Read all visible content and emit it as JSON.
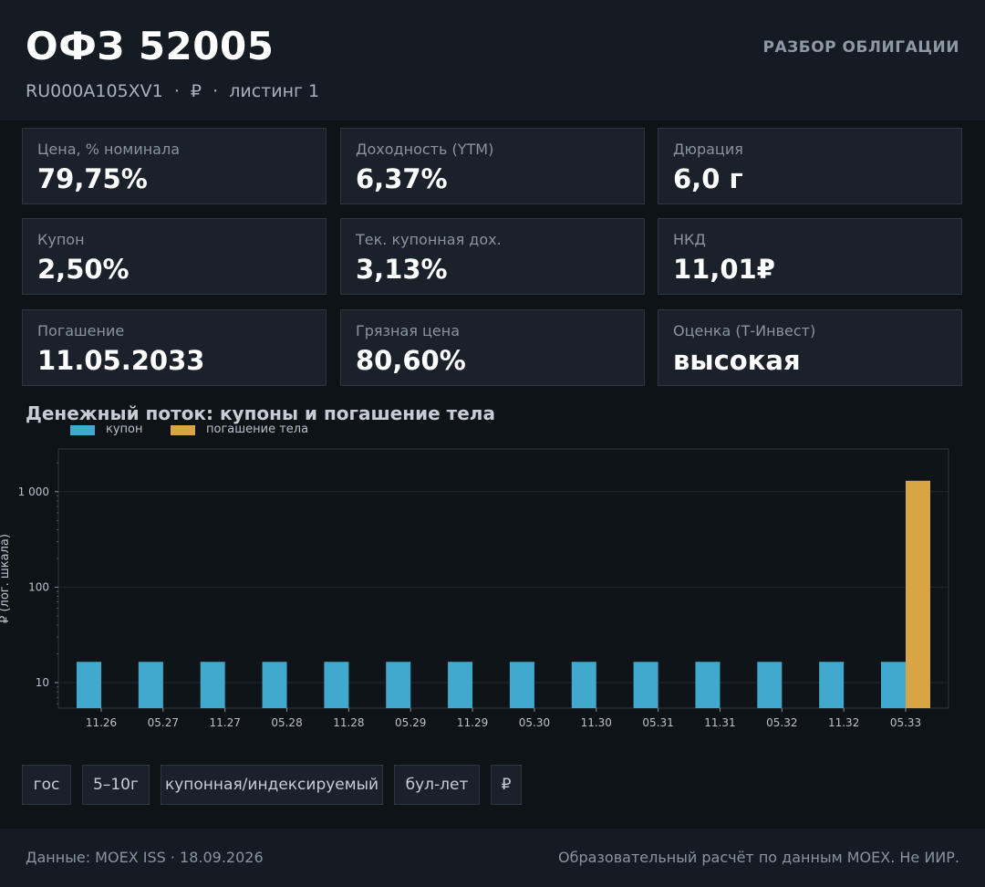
{
  "header": {
    "title": "ОФЗ 52005",
    "subtitle": "RU000A105XV1  ·  ₽  ·  листинг 1",
    "tag": "РАЗБОР ОБЛИГАЦИИ"
  },
  "metrics": [
    {
      "label": "Цена, % номинала",
      "value": "79,75%"
    },
    {
      "label": "Доходность (YTM)",
      "value": "6,37%"
    },
    {
      "label": "Дюрация",
      "value": "6,0 г"
    },
    {
      "label": "Купон",
      "value": "2,50%"
    },
    {
      "label": "Тек. купонная дох.",
      "value": "3,13%"
    },
    {
      "label": "НКД",
      "value": "11,01₽"
    },
    {
      "label": "Погашение",
      "value": "11.05.2033"
    },
    {
      "label": "Грязная цена",
      "value": "80,60%"
    },
    {
      "label": "Оценка (Т-Инвест)",
      "value": "высокая"
    }
  ],
  "chart_data": {
    "type": "bar",
    "title": "Денежный поток: купоны и погашение тела",
    "ylabel": "₽ (лог. шкала)",
    "xlabel": "",
    "yscale": "log",
    "ylim": [
      5.4,
      2800
    ],
    "yticks": [
      10,
      100,
      1000
    ],
    "ytick_labels": [
      "10",
      "100",
      "1 000"
    ],
    "categories": [
      "11.26",
      "05.27",
      "11.27",
      "05.28",
      "11.28",
      "05.29",
      "11.29",
      "05.30",
      "11.30",
      "05.31",
      "11.31",
      "05.32",
      "11.32",
      "05.33"
    ],
    "series": [
      {
        "name": "купон",
        "color": "#41a9cd",
        "values": [
          16.5,
          16.5,
          16.5,
          16.5,
          16.5,
          16.5,
          16.5,
          16.5,
          16.5,
          16.5,
          16.5,
          16.5,
          16.5,
          16.5
        ]
      },
      {
        "name": "погашение тела",
        "color": "#d8a444",
        "values": [
          null,
          null,
          null,
          null,
          null,
          null,
          null,
          null,
          null,
          null,
          null,
          null,
          null,
          1300
        ]
      }
    ],
    "grid": true,
    "legend_position": "top-left"
  },
  "chips": [
    "гос",
    "5–10г",
    "купонная/индексируемый",
    "бул-лет",
    "₽"
  ],
  "footer": {
    "left": "Данные: MOEX ISS · 18.09.2026",
    "right": "Образовательный расчёт по данным MOEX. Не ИИР."
  }
}
